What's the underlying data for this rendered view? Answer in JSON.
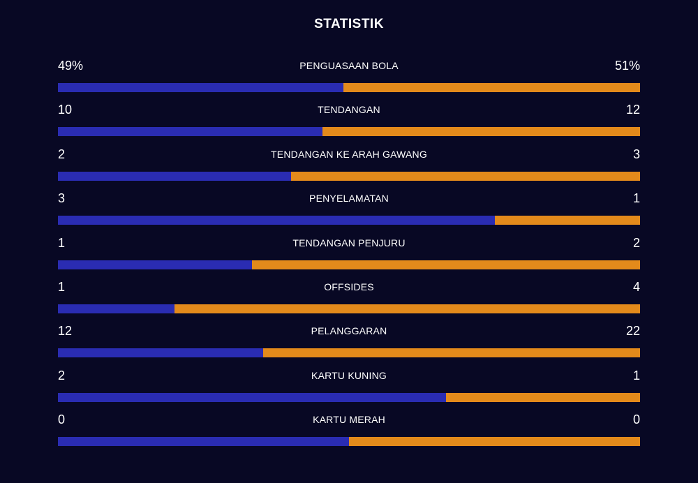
{
  "title": "STATISTIK",
  "colors": {
    "background": "#080824",
    "home_bar": "#2a2cb2",
    "away_bar": "#e38a1b",
    "text": "#ffffff"
  },
  "stats": [
    {
      "label": "PENGUASAAN BOLA",
      "home": "49%",
      "away": "51%",
      "home_share": 0.49
    },
    {
      "label": "TENDANGAN",
      "home": "10",
      "away": "12",
      "home_share": 0.4545
    },
    {
      "label": "TENDANGAN KE ARAH GAWANG",
      "home": "2",
      "away": "3",
      "home_share": 0.4
    },
    {
      "label": "PENYELAMATAN",
      "home": "3",
      "away": "1",
      "home_share": 0.75
    },
    {
      "label": "TENDANGAN PENJURU",
      "home": "1",
      "away": "2",
      "home_share": 0.3333
    },
    {
      "label": "OFFSIDES",
      "home": "1",
      "away": "4",
      "home_share": 0.2
    },
    {
      "label": "PELANGGARAN",
      "home": "12",
      "away": "22",
      "home_share": 0.3529
    },
    {
      "label": "KARTU KUNING",
      "home": "2",
      "away": "1",
      "home_share": 0.6667
    },
    {
      "label": "KARTU MERAH",
      "home": "0",
      "away": "0",
      "home_share": 0.5
    }
  ]
}
